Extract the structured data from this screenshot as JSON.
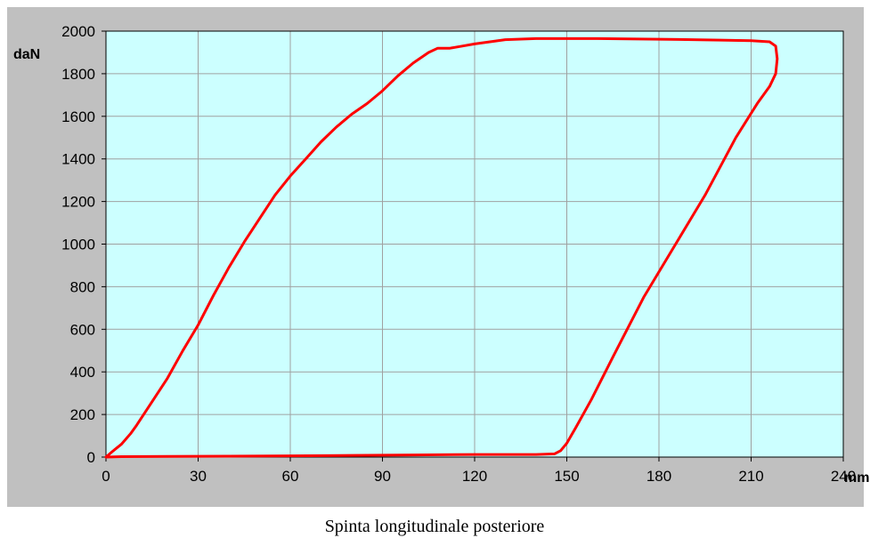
{
  "chart_data": {
    "type": "line",
    "title": "",
    "caption": "Spinta longitudinale posteriore",
    "xlabel": "mm",
    "ylabel": "daN",
    "xlim": [
      0,
      240
    ],
    "ylim": [
      0,
      2000
    ],
    "xticks": [
      0,
      30,
      60,
      90,
      120,
      150,
      180,
      210,
      240
    ],
    "yticks": [
      0,
      200,
      400,
      600,
      800,
      1000,
      1200,
      1400,
      1600,
      1800,
      2000
    ],
    "grid": true,
    "legend": "none",
    "series": [
      {
        "color": "#ff0000",
        "x": [
          0,
          2,
          5,
          8,
          10,
          15,
          20,
          25,
          30,
          35,
          40,
          45,
          50,
          55,
          60,
          65,
          70,
          75,
          80,
          85,
          90,
          95,
          100,
          105,
          108,
          112,
          116,
          120,
          130,
          140,
          150,
          160,
          180,
          200,
          210,
          216,
          218,
          218.5,
          218,
          216,
          212,
          205,
          195,
          185,
          175,
          165,
          158,
          153,
          150,
          148,
          146,
          140,
          120,
          100,
          80,
          60,
          40,
          20,
          5,
          0
        ],
        "y": [
          0,
          25,
          60,
          110,
          150,
          260,
          370,
          500,
          620,
          760,
          890,
          1010,
          1120,
          1230,
          1320,
          1400,
          1480,
          1550,
          1610,
          1660,
          1720,
          1790,
          1850,
          1900,
          1920,
          1920,
          1930,
          1940,
          1960,
          1965,
          1965,
          1965,
          1962,
          1958,
          1955,
          1950,
          1930,
          1870,
          1800,
          1740,
          1660,
          1500,
          1230,
          990,
          750,
          470,
          270,
          140,
          65,
          30,
          15,
          12,
          12,
          10,
          8,
          6,
          4,
          3,
          2,
          0
        ]
      }
    ]
  }
}
